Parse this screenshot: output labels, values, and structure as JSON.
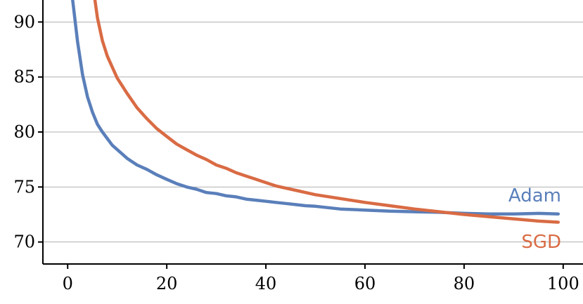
{
  "chart_data": {
    "type": "line",
    "title": "",
    "xlabel": "",
    "ylabel": "",
    "xlim": [
      -5,
      104
    ],
    "ylim": [
      68,
      92
    ],
    "xticks": [
      0,
      20,
      40,
      60,
      80,
      100
    ],
    "yticks": [
      70,
      75,
      80,
      85,
      90
    ],
    "xtick_labels": [
      "0",
      "20",
      "40",
      "60",
      "80",
      "100"
    ],
    "ytick_labels": [
      "70",
      "75",
      "80",
      "85",
      "90"
    ],
    "grid": "horizontal",
    "legend": "inline labels at right end of lines",
    "series": [
      {
        "name": "Adam",
        "color": "#5a7fba",
        "x": [
          1,
          2,
          3,
          4,
          5,
          6,
          7,
          8,
          9,
          10,
          12,
          14,
          16,
          18,
          20,
          22,
          24,
          26,
          28,
          30,
          32,
          34,
          36,
          38,
          40,
          42,
          44,
          46,
          48,
          50,
          55,
          60,
          65,
          70,
          75,
          80,
          85,
          90,
          95,
          99
        ],
        "y": [
          92.0,
          88.2,
          85.2,
          83.2,
          81.8,
          80.7,
          80.0,
          79.4,
          78.8,
          78.4,
          77.6,
          77.0,
          76.6,
          76.1,
          75.7,
          75.3,
          75.0,
          74.8,
          74.5,
          74.4,
          74.2,
          74.1,
          73.9,
          73.8,
          73.7,
          73.6,
          73.5,
          73.4,
          73.3,
          73.25,
          73.0,
          72.9,
          72.8,
          72.75,
          72.7,
          72.6,
          72.55,
          72.55,
          72.6,
          72.55
        ]
      },
      {
        "name": "SGD",
        "color": "#d96b44",
        "x": [
          5.5,
          6,
          7,
          8,
          9,
          10,
          12,
          14,
          16,
          18,
          20,
          22,
          24,
          26,
          28,
          30,
          32,
          34,
          36,
          38,
          40,
          42,
          44,
          46,
          48,
          50,
          55,
          60,
          65,
          70,
          75,
          80,
          85,
          90,
          95,
          99
        ],
        "y": [
          92.0,
          90.4,
          88.3,
          86.9,
          85.9,
          84.9,
          83.5,
          82.2,
          81.2,
          80.3,
          79.6,
          78.9,
          78.4,
          77.9,
          77.5,
          77.0,
          76.7,
          76.3,
          76.0,
          75.7,
          75.4,
          75.1,
          74.9,
          74.7,
          74.5,
          74.3,
          73.95,
          73.6,
          73.3,
          73.0,
          72.75,
          72.5,
          72.3,
          72.1,
          71.9,
          71.8
        ]
      }
    ]
  }
}
